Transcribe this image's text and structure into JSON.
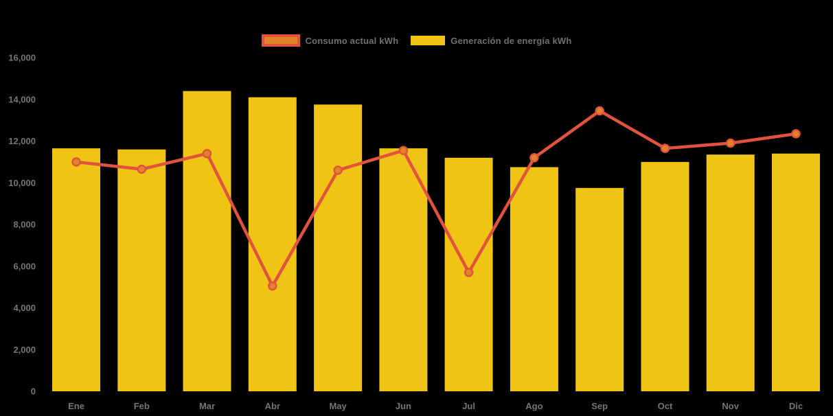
{
  "legend": {
    "items": [
      {
        "label": "Consumo actual kWh",
        "series": "consumo"
      },
      {
        "label": "Generación de energía kWh",
        "series": "generacion"
      }
    ]
  },
  "colors": {
    "background": "#000000",
    "bar_fill": "#EFC415",
    "line_stroke": "#E2533E",
    "marker_fill": "#E0842A",
    "axis_label": "#757575",
    "legend_label": "#6F6F6F"
  },
  "chart_data": {
    "type": "bar",
    "subtype": "combo-bar-line",
    "title": "",
    "xlabel": "",
    "ylabel": "",
    "categories": [
      "Ene",
      "Feb",
      "Mar",
      "Abr",
      "May",
      "Jun",
      "Jul",
      "Ago",
      "Sep",
      "Oct",
      "Nov",
      "Dic"
    ],
    "series": [
      {
        "name": "Consumo actual kWh",
        "type": "line",
        "values": [
          11000,
          10650,
          11400,
          5050,
          10600,
          11550,
          5700,
          11200,
          13450,
          11650,
          11900,
          12350
        ]
      },
      {
        "name": "Generación de energía kWh",
        "type": "bar",
        "values": [
          11650,
          11600,
          14400,
          14100,
          13750,
          11650,
          11200,
          10750,
          9750,
          11000,
          11350,
          11400
        ]
      }
    ],
    "ylim": [
      0,
      16000
    ],
    "ytick_step": 2000,
    "y_tick_labels": [
      "0",
      "2,000",
      "4,000",
      "6,000",
      "8,000",
      "10,000",
      "12,000",
      "14,000",
      "16,000"
    ],
    "legend_position": "top",
    "grid": false
  }
}
